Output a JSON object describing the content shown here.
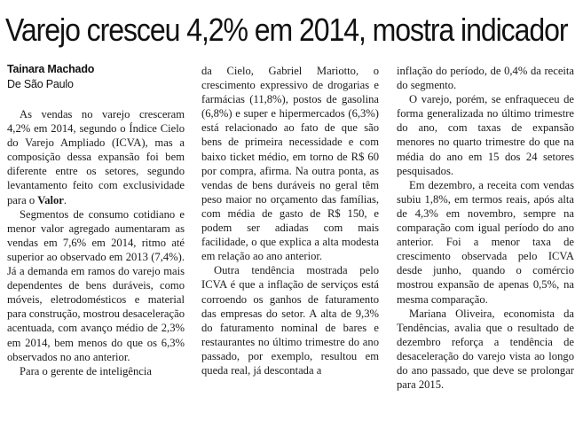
{
  "article": {
    "headline": "Varejo cresceu 4,2% em 2014, mostra indicador",
    "author": "Tainara Machado",
    "location": "De São Paulo",
    "columns": [
      [
        {
          "text": "As vendas no varejo cresceram 4,2% em 2014, segundo o Índice Cielo do Varejo Ampliado (ICVA), mas a composição dessa expansão foi bem diferente entre os setores, segundo levantamento feito com exclusividade para o ",
          "bold": "Valor",
          "tail": ".",
          "indent": true
        },
        {
          "text": "Segmentos de consumo cotidiano e menor valor agregado aumentaram as vendas em 7,6% em 2014, ritmo até superior ao observado em 2013 (7,4%). Já a demanda em ramos do varejo mais dependentes de bens duráveis, como móveis, eletrodomésticos e material para construção, mostrou desaceleração acentuada, com avanço médio de 2,3% em 2014, bem menos do que os 6,3% observados no ano anterior.",
          "indent": true
        },
        {
          "text": "Para o gerente de inteligência",
          "indent": true
        }
      ],
      [
        {
          "text": "da Cielo, Gabriel Mariotto, o crescimento expressivo de drogarias e farmácias (11,8%), postos de gasolina (6,8%) e super e hipermercados (6,3%) está relacionado ao fato de que são bens de primeira necessidade e com baixo ticket médio, em torno de R$ 60 por compra, afirma. Na outra ponta, as vendas de bens duráveis no geral têm peso maior no orçamento das famílias, com média de gasto de R$ 150, e podem ser adiadas com mais facilidade, o que explica a alta modesta em relação ao ano anterior.",
          "indent": false
        },
        {
          "text": "Outra tendência mostrada pelo ICVA é que a inflação de serviços está corroendo os ganhos de faturamento das empresas do setor. A alta de 9,3% do faturamento nominal de bares e restaurantes no último trimestre do ano passado, por exemplo, resultou em queda real, já descontada a",
          "indent": true
        }
      ],
      [
        {
          "text": "inflação do período, de 0,4% da receita do segmento.",
          "indent": false
        },
        {
          "text": "O varejo, porém, se enfraqueceu de forma generalizada no último trimestre do ano, com taxas de expansão menores no quarto trimestre do que na média do ano em 15 dos 24 setores pesquisados.",
          "indent": true
        },
        {
          "text": "Em dezembro, a receita com vendas subiu 1,8%, em termos reais, após alta de 4,3% em novembro, sempre na comparação com igual período do ano anterior. Foi a menor taxa de crescimento observada pelo ICVA desde junho, quando o comércio mostrou expansão de apenas 0,5%, na mesma comparação.",
          "indent": true
        },
        {
          "text": "Mariana Oliveira, economista da Tendências, avalia que o resultado de dezembro reforça a tendência de desaceleração do varejo vista ao longo do ano passado, que deve se prolongar para 2015.",
          "indent": true
        }
      ]
    ]
  }
}
